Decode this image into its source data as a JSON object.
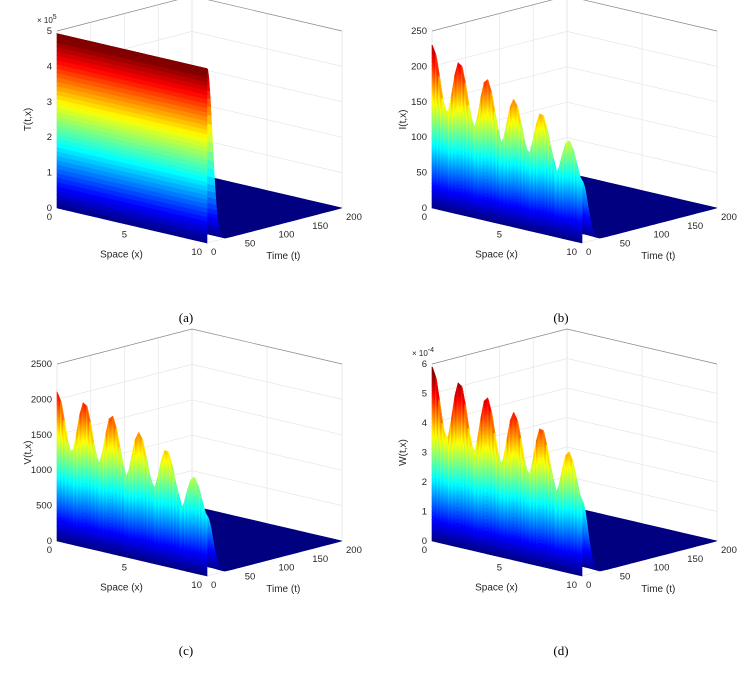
{
  "chart_data": [
    {
      "type": "surface",
      "caption": "(a)",
      "zlabel": "T(t,x)",
      "ylabel": "Space (x)",
      "xlabel": "Time (t)",
      "z_exponent": "×10^5",
      "z_exponent_base": "× 10",
      "z_exponent_power": "5",
      "zlim": [
        0,
        5
      ],
      "zticks": [
        "0",
        "1",
        "2",
        "3",
        "4",
        "5"
      ],
      "space_ticks": [
        "0",
        "5",
        "10"
      ],
      "time_ticks": [
        "0",
        "50",
        "100",
        "150",
        "200"
      ],
      "space_range": [
        0,
        10
      ],
      "time_range": [
        0,
        200
      ],
      "profile": "initial plateau at 5 (x10^5) for all x, decays to 0 by t≈15",
      "peaks": [],
      "colormap": "jet"
    },
    {
      "type": "surface",
      "caption": "(b)",
      "zlabel": "I(t,x)",
      "ylabel": "Space (x)",
      "xlabel": "Time (t)",
      "z_exponent": "",
      "zlim": [
        0,
        250
      ],
      "zticks": [
        "0",
        "50",
        "100",
        "150",
        "200",
        "250"
      ],
      "space_ticks": [
        "0",
        "5",
        "10"
      ],
      "time_ticks": [
        "0",
        "50",
        "100",
        "150",
        "200"
      ],
      "space_range": [
        0,
        10
      ],
      "time_range": [
        0,
        200
      ],
      "peaks": [
        230,
        215,
        200,
        180,
        170,
        140
      ],
      "colormap": "jet"
    },
    {
      "type": "surface",
      "caption": "(c)",
      "zlabel": "V(t,x)",
      "ylabel": "Space (x)",
      "xlabel": "Time (t)",
      "z_exponent": "",
      "zlim": [
        0,
        2500
      ],
      "zticks": [
        "0",
        "500",
        "1000",
        "1500",
        "2000",
        "2500"
      ],
      "space_ticks": [
        "0",
        "5",
        "10"
      ],
      "time_ticks": [
        "0",
        "50",
        "100",
        "150",
        "200"
      ],
      "space_range": [
        0,
        10
      ],
      "time_range": [
        0,
        200
      ],
      "peaks": [
        2100,
        2050,
        1950,
        1800,
        1650,
        1350
      ],
      "colormap": "jet"
    },
    {
      "type": "surface",
      "caption": "(d)",
      "zlabel": "W(t,x)",
      "ylabel": "Space (x)",
      "xlabel": "Time (t)",
      "z_exponent": "×10^-4",
      "z_exponent_base": "× 10",
      "z_exponent_power": "-4",
      "zlim": [
        0,
        6
      ],
      "zticks": [
        "0",
        "1",
        "2",
        "3",
        "4",
        "5",
        "6"
      ],
      "space_ticks": [
        "0",
        "5",
        "10"
      ],
      "time_ticks": [
        "0",
        "50",
        "100",
        "150",
        "200"
      ],
      "space_range": [
        0,
        10
      ],
      "time_range": [
        0,
        200
      ],
      "peaks": [
        5.9,
        5.6,
        5.3,
        5.0,
        4.7,
        4.1
      ],
      "colormap": "jet"
    }
  ]
}
